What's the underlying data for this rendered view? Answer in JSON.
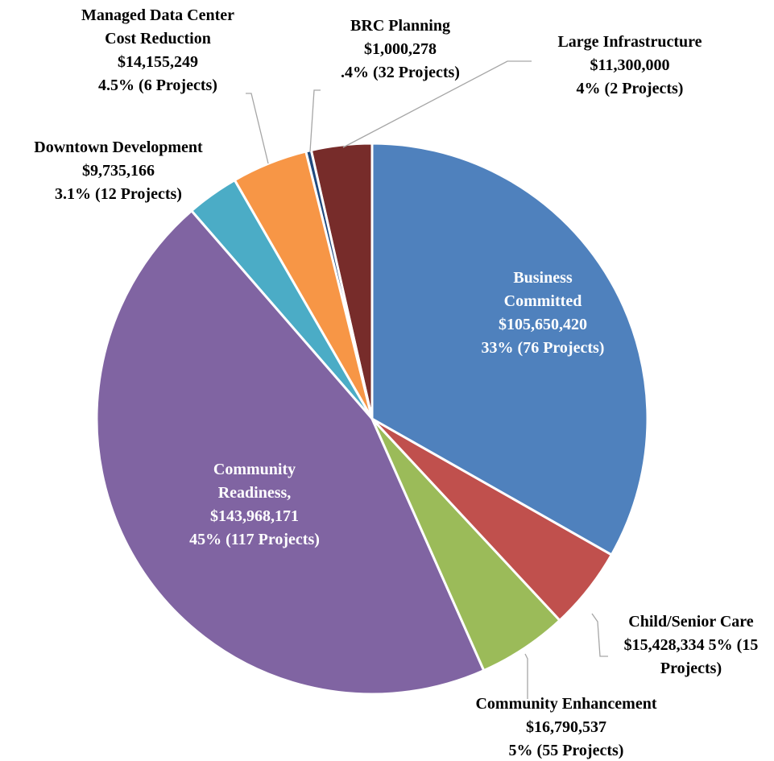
{
  "chart_data": {
    "type": "pie",
    "categories": [
      "Business Committed",
      "Child/Senior Care",
      "Community Enhancement",
      "Community Readiness,",
      "Downtown Development",
      "Managed Data Center Cost Reduction",
      "BRC Planning",
      "Large Infrastructure"
    ],
    "values": [
      105650420,
      15428334,
      16790537,
      143968171,
      9735166,
      14155249,
      1000278,
      11300000
    ],
    "value_labels": [
      "$105,650,420",
      "$15,428,334",
      "$16,790,537",
      "$143,968,171",
      "$9,735,166",
      "$14,155,249",
      "$1,000,278",
      "$11,300,000"
    ],
    "shares": [
      "33% (76 Projects)",
      "5% (15 Projects)",
      "5% (55 Projects)",
      "45% (117 Projects)",
      "3.1% (12 Projects)",
      "4.5% (6 Projects)",
      ".4% (32 Projects)",
      "4% (2 Projects)"
    ],
    "colors": [
      "#4f81bd",
      "#c0504d",
      "#9bbb59",
      "#8064a2",
      "#4bacc6",
      "#f79646",
      "#1f497d",
      "#772c2a"
    ]
  }
}
